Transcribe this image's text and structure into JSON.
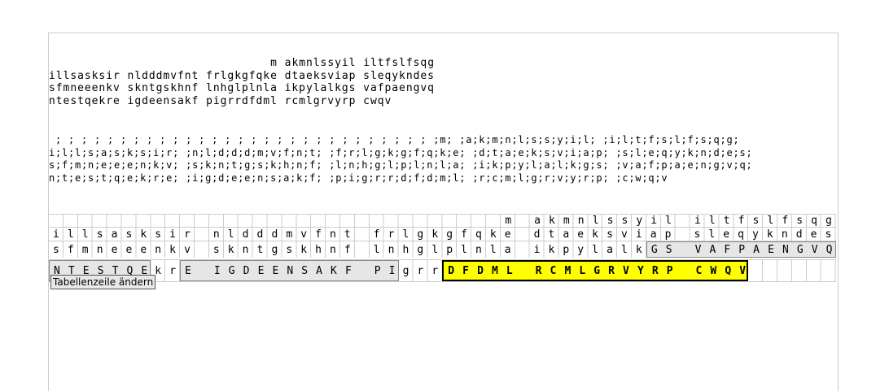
{
  "text_block": {
    "lines": [
      "m akmnlssyil iltfslfsqg",
      "illsasksir nldddmvfnt frlgkgfqke dtaeksviap sleqykndes",
      "sfmneeenkv skntgskhnf lnhglplnla ikpylalkgs vafpaengvq",
      "ntestqekre igdeensakf pigrrdfdml rcmlgrvyrp cwqv"
    ]
  },
  "semicolon_block": {
    "lines": [
      " ; ; ; ; ; ; ; ; ; ; ; ; ; ; ; ; ; ; ; ; ; ; ; ; ; ; ; ; ; ;m; ;a;k;m;n;l;s;s;y;i;l; ;i;l;t;f;s;l;f;s;q;g;",
      "i;l;l;s;a;s;k;s;i;r; ;n;l;d;d;d;m;v;f;n;t; ;f;r;l;g;k;g;f;q;k;e; ;d;t;a;e;k;s;v;i;a;p; ;s;l;e;q;y;k;n;d;e;s;",
      "s;f;m;n;e;e;e;n;k;v; ;s;k;n;t;g;s;k;h;n;f; ;l;n;h;g;l;p;l;n;l;a; ;i;k;p;y;l;a;l;k;g;s; ;v;a;f;p;a;e;n;g;v;q;",
      "n;t;e;s;t;q;e;k;r;e; ;i;g;d;e;e;n;s;a;k;f; ;p;i;g;r;r;d;f;d;m;l; ;r;c;m;l;g;r;v;y;r;p; ;c;w;q;v"
    ]
  },
  "grid": {
    "rows": [
      [
        {
          "text": "m akmnlssyil iltfslfsqg",
          "style": "plain"
        }
      ],
      [
        {
          "text": "illsasksir nldddmvfnt frlgkgfqke dtaeksviap sleqykndes",
          "style": "plain"
        }
      ],
      [
        {
          "text": "sfmneeenkv skntgskhnf lnhglplnla ikpylalk",
          "style": "plain"
        },
        {
          "text": "GS VAFPAENGVQ",
          "style": "gray"
        }
      ],
      [
        {
          "text": "NTESTQE",
          "style": "gray"
        },
        {
          "text": "kr",
          "style": "plain"
        },
        {
          "text": "E IGDEENSAKF PI",
          "style": "gray"
        },
        {
          "text": "grr",
          "style": "plain"
        },
        {
          "text": "DFDML RCMLGRVYRP CWQV",
          "style": "highlight"
        }
      ]
    ]
  },
  "tooltip": "Tabellenzeile ändern"
}
